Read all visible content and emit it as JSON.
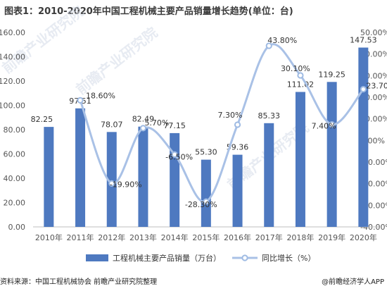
{
  "title": "图表1：2010-2020年中国工程机械主要产品销量增长趋势(单位：台)",
  "source": "资料来源：中国工程机械协会 前瞻产业研究院整理",
  "brand": "@前瞻经济学人APP",
  "watermarks": [
    "前瞻产业研究院",
    "前瞻产业研究院",
    "前瞻产业研究院"
  ],
  "colors": {
    "bar": "#4e79c0",
    "line": "#a9c1e6",
    "marker_fill": "#ffffff",
    "marker_stroke": "#9fbbe3"
  },
  "chart_data": {
    "type": "bar",
    "categories": [
      "2010年",
      "2011年",
      "2012年",
      "2013年",
      "2014年",
      "2015年",
      "2016年",
      "2017年",
      "2018年",
      "2019年",
      "2020年"
    ],
    "series": [
      {
        "name": "工程机械主要产品销量（万台）",
        "type": "bar",
        "axis": "left",
        "values": [
          82.25,
          97.51,
          78.07,
          82.49,
          77.15,
          55.3,
          59.36,
          85.33,
          111.02,
          119.25,
          147.53
        ],
        "labels": [
          "82.25",
          "97.51",
          "78.07",
          "82.49",
          "77.15",
          "55.30",
          "59.36",
          "85.33",
          "111.02",
          "119.25",
          "147.53"
        ]
      },
      {
        "name": "同比增长（%）",
        "type": "line",
        "axis": "right",
        "smooth": true,
        "values": [
          null,
          18.6,
          -19.9,
          5.7,
          -6.5,
          -28.3,
          7.3,
          43.8,
          30.1,
          7.4,
          23.7
        ],
        "labels": [
          "",
          "18.60%",
          "-19.90%",
          "5.70%",
          "-6.50%",
          "-28.30%",
          "7.30%",
          "43.80%",
          "30.10%",
          "7.40%",
          "23.70%"
        ]
      }
    ],
    "y_left": {
      "ylim": [
        0,
        160
      ],
      "ticks": [
        "0.00",
        "20.00",
        "40.00",
        "60.00",
        "80.00",
        "100.00",
        "120.00",
        "140.00",
        "160.00"
      ]
    },
    "y_right": {
      "ylim": [
        -40,
        50
      ],
      "ticks": [
        "-40.00%",
        "-30.00%",
        "-20.00%",
        "-10.00%",
        "0.00%",
        "10.00%",
        "20.00%",
        "30.00%",
        "40.00%",
        "50.00%"
      ]
    },
    "legend": {
      "position": "bottom",
      "items": [
        "工程机械主要产品销量（万台）",
        "同比增长（%）"
      ]
    },
    "grid": false
  }
}
